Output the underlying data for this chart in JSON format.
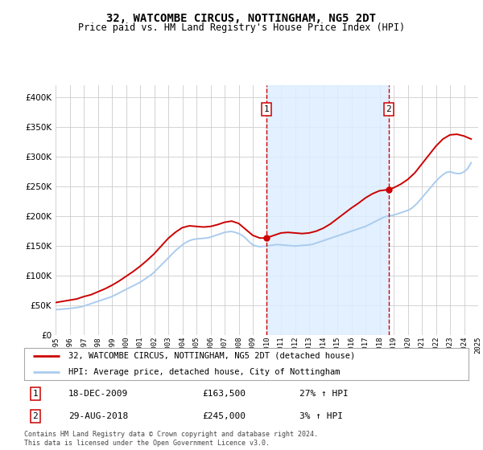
{
  "title": "32, WATCOMBE CIRCUS, NOTTINGHAM, NG5 2DT",
  "subtitle": "Price paid vs. HM Land Registry's House Price Index (HPI)",
  "legend_line1": "32, WATCOMBE CIRCUS, NOTTINGHAM, NG5 2DT (detached house)",
  "legend_line2": "HPI: Average price, detached house, City of Nottingham",
  "annotation1_label": "1",
  "annotation1_date": "18-DEC-2009",
  "annotation1_price": "£163,500",
  "annotation1_hpi": "27% ↑ HPI",
  "annotation2_label": "2",
  "annotation2_date": "29-AUG-2018",
  "annotation2_price": "£245,000",
  "annotation2_hpi": "3% ↑ HPI",
  "footnote": "Contains HM Land Registry data © Crown copyright and database right 2024.\nThis data is licensed under the Open Government Licence v3.0.",
  "red_line_color": "#cc0000",
  "blue_line_color": "#aaccee",
  "vline_color": "#cc0000",
  "shaded_color": "#ddeeff",
  "background_color": "#ffffff",
  "grid_color": "#cccccc",
  "ylim": [
    0,
    420000
  ],
  "yticks": [
    0,
    50000,
    100000,
    150000,
    200000,
    250000,
    300000,
    350000,
    400000
  ],
  "hpi_x": [
    1995.0,
    1995.25,
    1995.5,
    1995.75,
    1996.0,
    1996.25,
    1996.5,
    1996.75,
    1997.0,
    1997.25,
    1997.5,
    1997.75,
    1998.0,
    1998.25,
    1998.5,
    1998.75,
    1999.0,
    1999.25,
    1999.5,
    1999.75,
    2000.0,
    2000.25,
    2000.5,
    2000.75,
    2001.0,
    2001.25,
    2001.5,
    2001.75,
    2002.0,
    2002.25,
    2002.5,
    2002.75,
    2003.0,
    2003.25,
    2003.5,
    2003.75,
    2004.0,
    2004.25,
    2004.5,
    2004.75,
    2005.0,
    2005.25,
    2005.5,
    2005.75,
    2006.0,
    2006.25,
    2006.5,
    2006.75,
    2007.0,
    2007.25,
    2007.5,
    2007.75,
    2008.0,
    2008.25,
    2008.5,
    2008.75,
    2009.0,
    2009.25,
    2009.5,
    2009.75,
    2010.0,
    2010.25,
    2010.5,
    2010.75,
    2011.0,
    2011.25,
    2011.5,
    2011.75,
    2012.0,
    2012.25,
    2012.5,
    2012.75,
    2013.0,
    2013.25,
    2013.5,
    2013.75,
    2014.0,
    2014.25,
    2014.5,
    2014.75,
    2015.0,
    2015.25,
    2015.5,
    2015.75,
    2016.0,
    2016.25,
    2016.5,
    2016.75,
    2017.0,
    2017.25,
    2017.5,
    2017.75,
    2018.0,
    2018.25,
    2018.5,
    2018.75,
    2019.0,
    2019.25,
    2019.5,
    2019.75,
    2020.0,
    2020.25,
    2020.5,
    2020.75,
    2021.0,
    2021.25,
    2021.5,
    2021.75,
    2022.0,
    2022.25,
    2022.5,
    2022.75,
    2023.0,
    2023.25,
    2023.5,
    2023.75,
    2024.0,
    2024.25,
    2024.5
  ],
  "hpi_y": [
    43000,
    43500,
    44000,
    44500,
    45000,
    45800,
    46500,
    47500,
    49000,
    51000,
    53000,
    55000,
    57000,
    59000,
    61000,
    63000,
    65000,
    68000,
    71000,
    74000,
    77000,
    80000,
    83000,
    86000,
    89000,
    93000,
    97000,
    101000,
    106000,
    112000,
    118000,
    124000,
    130000,
    136000,
    142000,
    147000,
    152000,
    156000,
    159000,
    161000,
    162000,
    162500,
    163000,
    163500,
    165000,
    167000,
    169000,
    171000,
    173000,
    174000,
    174500,
    173000,
    171000,
    168000,
    163000,
    157000,
    152000,
    150000,
    149000,
    149500,
    150000,
    151000,
    152000,
    152500,
    152000,
    151500,
    151000,
    150500,
    150000,
    150500,
    151000,
    151500,
    152000,
    153000,
    155000,
    157000,
    159000,
    161000,
    163000,
    165000,
    167000,
    169000,
    171000,
    173000,
    175000,
    177000,
    179000,
    181000,
    183000,
    186000,
    189000,
    192000,
    195000,
    198000,
    200000,
    201000,
    202000,
    204000,
    206000,
    208000,
    210000,
    213000,
    218000,
    224000,
    231000,
    238000,
    245000,
    252000,
    259000,
    265000,
    270000,
    274000,
    275000,
    273000,
    272000,
    272000,
    275000,
    280000,
    290000
  ],
  "red_x": [
    1995.0,
    1995.5,
    1996.0,
    1996.5,
    1997.0,
    1997.5,
    1998.0,
    1998.5,
    1999.0,
    1999.5,
    2000.0,
    2000.5,
    2001.0,
    2001.5,
    2002.0,
    2002.5,
    2003.0,
    2003.5,
    2004.0,
    2004.5,
    2005.0,
    2005.5,
    2006.0,
    2006.5,
    2007.0,
    2007.5,
    2008.0,
    2008.5,
    2009.0,
    2009.5,
    2009.96,
    2010.5,
    2011.0,
    2011.5,
    2012.0,
    2012.5,
    2013.0,
    2013.5,
    2014.0,
    2014.5,
    2015.0,
    2015.5,
    2016.0,
    2016.5,
    2017.0,
    2017.5,
    2018.0,
    2018.65,
    2019.0,
    2019.5,
    2020.0,
    2020.5,
    2021.0,
    2021.5,
    2022.0,
    2022.5,
    2023.0,
    2023.5,
    2024.0,
    2024.5
  ],
  "red_y": [
    55000,
    57000,
    59000,
    61000,
    65000,
    68000,
    73000,
    78000,
    84000,
    91000,
    99000,
    107000,
    116000,
    126000,
    137000,
    150000,
    163000,
    173000,
    181000,
    184000,
    183000,
    182000,
    183000,
    186000,
    190000,
    192000,
    188000,
    178000,
    168000,
    163500,
    163500,
    168000,
    172000,
    173000,
    172000,
    171000,
    172000,
    175000,
    180000,
    187000,
    196000,
    205000,
    214000,
    222000,
    231000,
    238000,
    243000,
    245000,
    248000,
    254000,
    262000,
    273000,
    288000,
    303000,
    318000,
    330000,
    337000,
    338000,
    335000,
    330000
  ],
  "vline1_x": 2009.96,
  "vline2_x": 2018.65,
  "marker1_x": 2009.96,
  "marker1_y": 163500,
  "marker2_x": 2018.65,
  "marker2_y": 245000,
  "shade_x1": 2009.96,
  "shade_x2": 2018.65,
  "xlim": [
    1995,
    2025
  ],
  "title_fontsize": 10,
  "subtitle_fontsize": 8.5,
  "tick_fontsize": 6.5,
  "ytick_fontsize": 7.5,
  "legend_fontsize": 7.5,
  "ann_fontsize": 8,
  "footnote_fontsize": 6
}
